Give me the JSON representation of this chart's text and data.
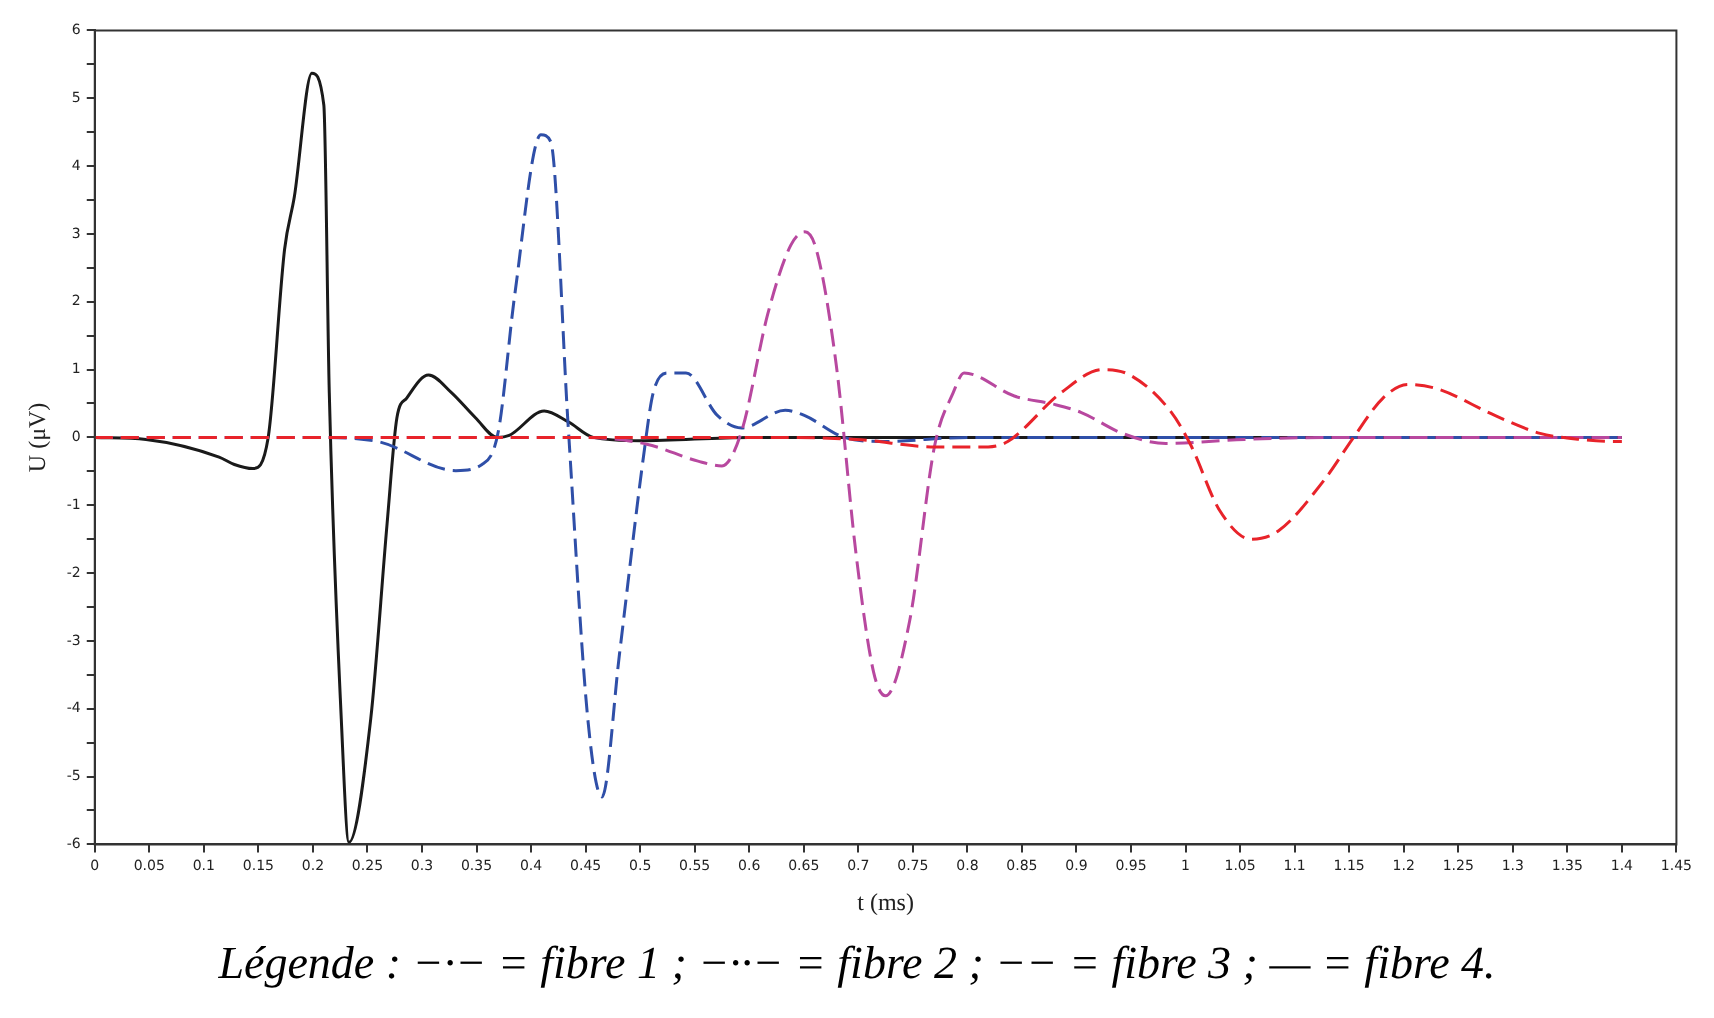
{
  "chart_data": {
    "type": "line",
    "xlabel": "t (ms)",
    "ylabel": "U (μV)",
    "annotations": [
      "Légende : −·− = fibre 1 ; −··− = fibre 2 ; −− = fibre 3 ; — = fibre 4."
    ],
    "xlim": [
      0,
      1.45
    ],
    "ylim": [
      -6,
      6
    ],
    "xticks": [
      0,
      0.05,
      0.1,
      0.15,
      0.2,
      0.25,
      0.3,
      0.35,
      0.4,
      0.45,
      0.5,
      0.55,
      0.6,
      0.65,
      0.7,
      0.75,
      0.8,
      0.85,
      0.9,
      0.95,
      1,
      1.05,
      1.1,
      1.15,
      1.2,
      1.25,
      1.3,
      1.35,
      1.4,
      1.45
    ],
    "yticks": [
      -6,
      {
        "value": -5.5,
        "label": null
      },
      -5,
      {
        "value": -4.5,
        "label": null
      },
      -4,
      {
        "value": -3.5,
        "label": null
      },
      -3,
      {
        "value": -2.5,
        "label": null
      },
      -2,
      {
        "value": -1.5,
        "label": null
      },
      -1,
      {
        "value": -0.5,
        "label": null
      },
      0,
      {
        "value": 0.5,
        "label": null
      },
      1,
      {
        "value": 1.5,
        "label": null
      },
      2,
      {
        "value": 2.5,
        "label": null
      },
      3,
      {
        "value": 3.5,
        "label": null
      },
      4,
      {
        "value": 4.5,
        "label": null
      },
      5,
      {
        "value": 5.5,
        "label": null
      },
      6
    ],
    "grid": false,
    "legend": false,
    "marker": "none",
    "series": [
      {
        "color": "#e8232a",
        "line_style": "dashed",
        "x": [
          0,
          0.3,
          0.6,
          0.698,
          0.77,
          0.819,
          0.837,
          0.886,
          0.924,
          0.949,
          0.987,
          1.005,
          1.031,
          1.06,
          1.085,
          1.127,
          1.154,
          1.181,
          1.204,
          1.23,
          1.284,
          1.325,
          1.362,
          1.395,
          1.4
        ],
        "values": [
          0,
          0,
          0,
          -0.03,
          -0.14,
          -0.14,
          -0.06,
          0.66,
          1.0,
          0.92,
          0.37,
          -0.12,
          -1.07,
          -1.5,
          -1.38,
          -0.63,
          0,
          0.58,
          0.78,
          0.72,
          0.32,
          0.06,
          -0.03,
          -0.06,
          -0.06
        ]
      },
      {
        "color": "#b8489f",
        "line_style": "dashed",
        "x": [
          0,
          0.2,
          0.445,
          0.506,
          0.553,
          0.575,
          0.593,
          0.617,
          0.638,
          0.651,
          0.662,
          0.68,
          0.698,
          0.714,
          0.725,
          0.747,
          0.77,
          0.787,
          0.797,
          0.843,
          0.879,
          0.904,
          0.942,
          0.982,
          1.054,
          1.14,
          1.4
        ],
        "values": [
          0,
          0,
          0,
          -0.1,
          -0.35,
          -0.42,
          0.09,
          1.82,
          2.83,
          3.03,
          2.74,
          1.04,
          -1.73,
          -3.46,
          -3.81,
          -2.71,
          -0.12,
          0.66,
          0.95,
          0.61,
          0.49,
          0.37,
          0.06,
          -0.09,
          -0.03,
          0,
          0
        ]
      },
      {
        "color": "#2f4fa8",
        "line_style": "dashed",
        "x": [
          0,
          0.2,
          0.259,
          0.331,
          0.355,
          0.37,
          0.385,
          0.409,
          0.418,
          0.434,
          0.452,
          0.465,
          0.481,
          0.503,
          0.512,
          0.526,
          0.542,
          0.571,
          0.593,
          0.633,
          0.651,
          0.687,
          0.723,
          0.8,
          1.4
        ],
        "values": [
          0,
          0,
          -0.06,
          -0.49,
          -0.4,
          0.09,
          2.1,
          4.46,
          4.36,
          0.17,
          -4.15,
          -5.3,
          -3.2,
          -0.29,
          0.66,
          0.95,
          0.95,
          0.32,
          0.14,
          0.4,
          0.32,
          0,
          -0.06,
          0,
          0
        ]
      },
      {
        "color": "#1a1a1a",
        "line_style": "solid",
        "x": [
          0,
          0.047,
          0.114,
          0.128,
          0.145,
          0.159,
          0.174,
          0.183,
          0.199,
          0.21,
          0.215,
          0.226,
          0.233,
          0.253,
          0.268,
          0.277,
          0.286,
          0.306,
          0.327,
          0.349,
          0.369,
          0.38,
          0.412,
          0.434,
          0.457,
          0.5,
          0.6,
          1.4
        ],
        "values": [
          0,
          -0.03,
          -0.29,
          -0.4,
          -0.46,
          0,
          2.77,
          3.55,
          5.37,
          4.9,
          0.66,
          -4.15,
          -5.97,
          -4.15,
          -1.27,
          0.29,
          0.58,
          0.92,
          0.66,
          0.29,
          0,
          0.03,
          0.39,
          0.23,
          0,
          -0.05,
          0,
          0
        ]
      }
    ]
  }
}
